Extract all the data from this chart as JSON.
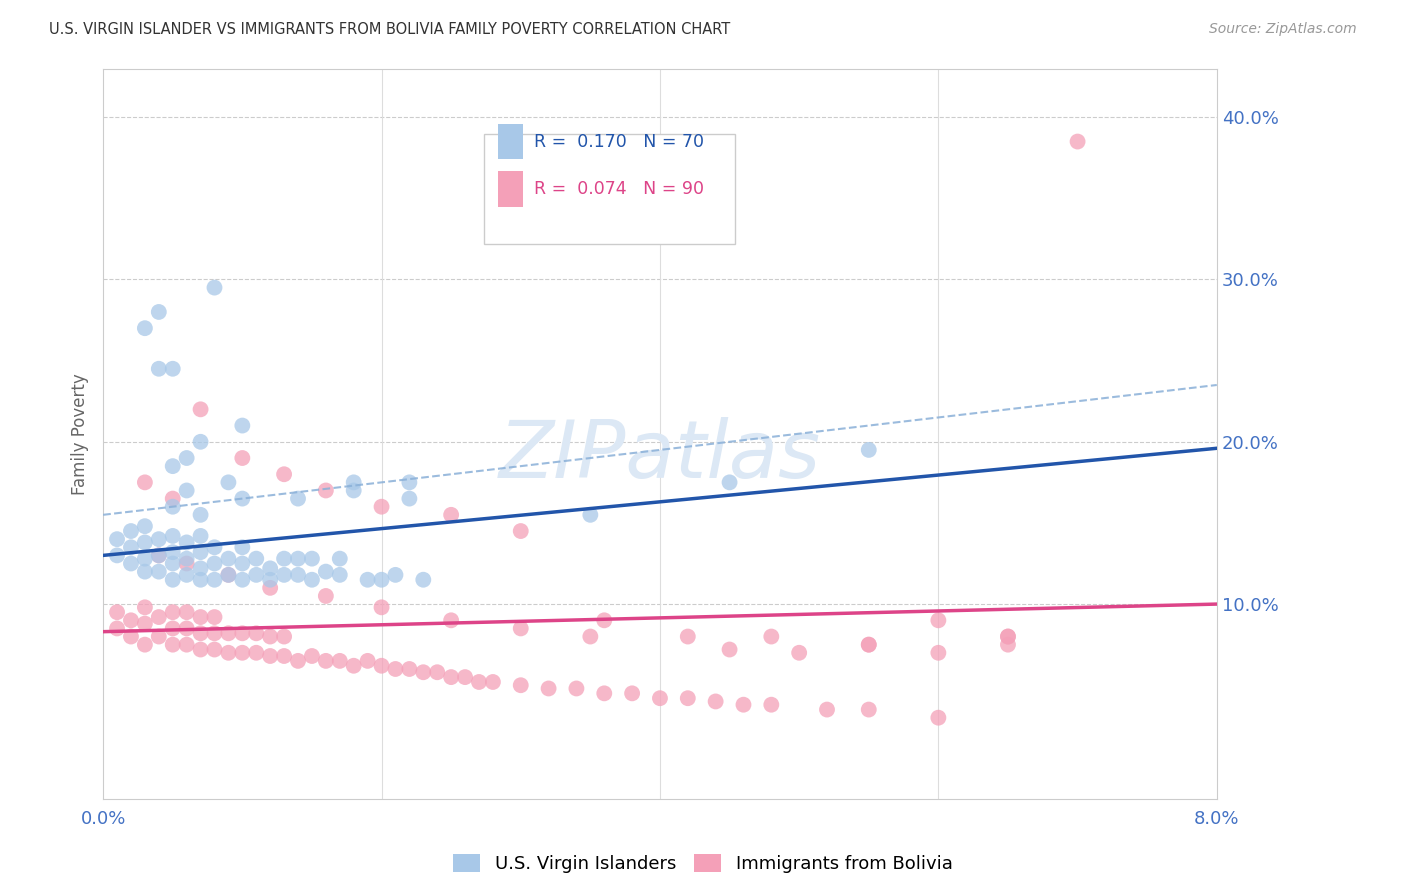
{
  "title": "U.S. VIRGIN ISLANDER VS IMMIGRANTS FROM BOLIVIA FAMILY POVERTY CORRELATION CHART",
  "source": "Source: ZipAtlas.com",
  "ylabel": "Family Poverty",
  "legend_blue_label": "U.S. Virgin Islanders",
  "legend_pink_label": "Immigrants from Bolivia",
  "blue_color": "#a8c8e8",
  "pink_color": "#f4a0b8",
  "blue_line_color": "#2255aa",
  "pink_line_color": "#dd4488",
  "dashed_line_color": "#8ab0d8",
  "axis_tick_color": "#4472c4",
  "right_ytick_color": "#4472c4",
  "background_color": "#ffffff",
  "watermark": "ZIPatlas",
  "watermark_color": "#dce8f5",
  "xmin": 0.0,
  "xmax": 0.08,
  "ymin": -0.02,
  "ymax": 0.43,
  "yticks_right": [
    0.1,
    0.2,
    0.3,
    0.4
  ],
  "ytick_labels_right": [
    "10.0%",
    "20.0%",
    "30.0%",
    "40.0%"
  ],
  "blue_scatter_x": [
    0.001,
    0.001,
    0.002,
    0.002,
    0.002,
    0.003,
    0.003,
    0.003,
    0.003,
    0.004,
    0.004,
    0.004,
    0.005,
    0.005,
    0.005,
    0.005,
    0.006,
    0.006,
    0.006,
    0.007,
    0.007,
    0.007,
    0.007,
    0.008,
    0.008,
    0.008,
    0.009,
    0.009,
    0.01,
    0.01,
    0.01,
    0.011,
    0.011,
    0.012,
    0.012,
    0.013,
    0.013,
    0.014,
    0.014,
    0.015,
    0.015,
    0.016,
    0.017,
    0.017,
    0.018,
    0.019,
    0.02,
    0.021,
    0.022,
    0.023,
    0.003,
    0.004,
    0.005,
    0.006,
    0.007,
    0.008,
    0.009,
    0.01,
    0.014,
    0.018,
    0.004,
    0.005,
    0.022,
    0.035,
    0.045,
    0.055,
    0.01,
    0.007,
    0.006,
    0.005
  ],
  "blue_scatter_y": [
    0.13,
    0.14,
    0.125,
    0.135,
    0.145,
    0.12,
    0.128,
    0.138,
    0.148,
    0.12,
    0.13,
    0.14,
    0.115,
    0.125,
    0.132,
    0.142,
    0.118,
    0.128,
    0.138,
    0.115,
    0.122,
    0.132,
    0.142,
    0.115,
    0.125,
    0.135,
    0.118,
    0.128,
    0.115,
    0.125,
    0.135,
    0.118,
    0.128,
    0.115,
    0.122,
    0.118,
    0.128,
    0.118,
    0.128,
    0.115,
    0.128,
    0.12,
    0.118,
    0.128,
    0.17,
    0.115,
    0.115,
    0.118,
    0.175,
    0.115,
    0.27,
    0.28,
    0.16,
    0.17,
    0.155,
    0.295,
    0.175,
    0.165,
    0.165,
    0.175,
    0.245,
    0.245,
    0.165,
    0.155,
    0.175,
    0.195,
    0.21,
    0.2,
    0.19,
    0.185
  ],
  "pink_scatter_x": [
    0.001,
    0.001,
    0.002,
    0.002,
    0.003,
    0.003,
    0.003,
    0.004,
    0.004,
    0.005,
    0.005,
    0.005,
    0.006,
    0.006,
    0.006,
    0.007,
    0.007,
    0.007,
    0.008,
    0.008,
    0.008,
    0.009,
    0.009,
    0.01,
    0.01,
    0.011,
    0.011,
    0.012,
    0.012,
    0.013,
    0.013,
    0.014,
    0.015,
    0.016,
    0.017,
    0.018,
    0.019,
    0.02,
    0.021,
    0.022,
    0.023,
    0.024,
    0.025,
    0.026,
    0.027,
    0.028,
    0.03,
    0.032,
    0.034,
    0.036,
    0.038,
    0.04,
    0.042,
    0.044,
    0.046,
    0.048,
    0.052,
    0.055,
    0.06,
    0.065,
    0.003,
    0.005,
    0.007,
    0.01,
    0.013,
    0.016,
    0.02,
    0.025,
    0.03,
    0.036,
    0.042,
    0.048,
    0.055,
    0.06,
    0.065,
    0.07,
    0.065,
    0.06,
    0.055,
    0.05,
    0.004,
    0.006,
    0.009,
    0.012,
    0.016,
    0.02,
    0.025,
    0.03,
    0.035,
    0.045
  ],
  "pink_scatter_y": [
    0.085,
    0.095,
    0.08,
    0.09,
    0.075,
    0.088,
    0.098,
    0.08,
    0.092,
    0.075,
    0.085,
    0.095,
    0.075,
    0.085,
    0.095,
    0.072,
    0.082,
    0.092,
    0.072,
    0.082,
    0.092,
    0.07,
    0.082,
    0.07,
    0.082,
    0.07,
    0.082,
    0.068,
    0.08,
    0.068,
    0.08,
    0.065,
    0.068,
    0.065,
    0.065,
    0.062,
    0.065,
    0.062,
    0.06,
    0.06,
    0.058,
    0.058,
    0.055,
    0.055,
    0.052,
    0.052,
    0.05,
    0.048,
    0.048,
    0.045,
    0.045,
    0.042,
    0.042,
    0.04,
    0.038,
    0.038,
    0.035,
    0.035,
    0.03,
    0.075,
    0.175,
    0.165,
    0.22,
    0.19,
    0.18,
    0.17,
    0.16,
    0.155,
    0.145,
    0.09,
    0.08,
    0.08,
    0.075,
    0.07,
    0.08,
    0.385,
    0.08,
    0.09,
    0.075,
    0.07,
    0.13,
    0.125,
    0.118,
    0.11,
    0.105,
    0.098,
    0.09,
    0.085,
    0.08,
    0.072
  ],
  "blue_line_x0": 0.0,
  "blue_line_x1": 0.08,
  "blue_line_y0": 0.13,
  "blue_line_y1": 0.196,
  "pink_line_x0": 0.0,
  "pink_line_x1": 0.08,
  "pink_line_y0": 0.083,
  "pink_line_y1": 0.1,
  "dash_line_x0": 0.0,
  "dash_line_x1": 0.08,
  "dash_line_y0": 0.155,
  "dash_line_y1": 0.235
}
